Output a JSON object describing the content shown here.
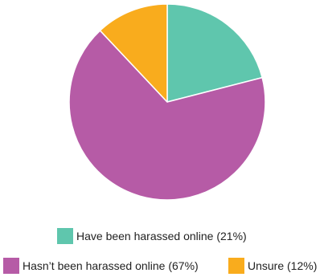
{
  "chart_data": {
    "type": "pie",
    "title": "",
    "start_angle_deg": 0,
    "direction": "clockwise",
    "legend_position": "bottom",
    "slices": [
      {
        "label": "Have been harassed online (21%)",
        "value": 21,
        "color": "#5fc6ad"
      },
      {
        "label": "Hasn’t been harassed online (67%)",
        "value": 67,
        "color": "#b65ba6"
      },
      {
        "label": "Unsure (12%)",
        "value": 12,
        "color": "#f9ac1d"
      }
    ]
  }
}
